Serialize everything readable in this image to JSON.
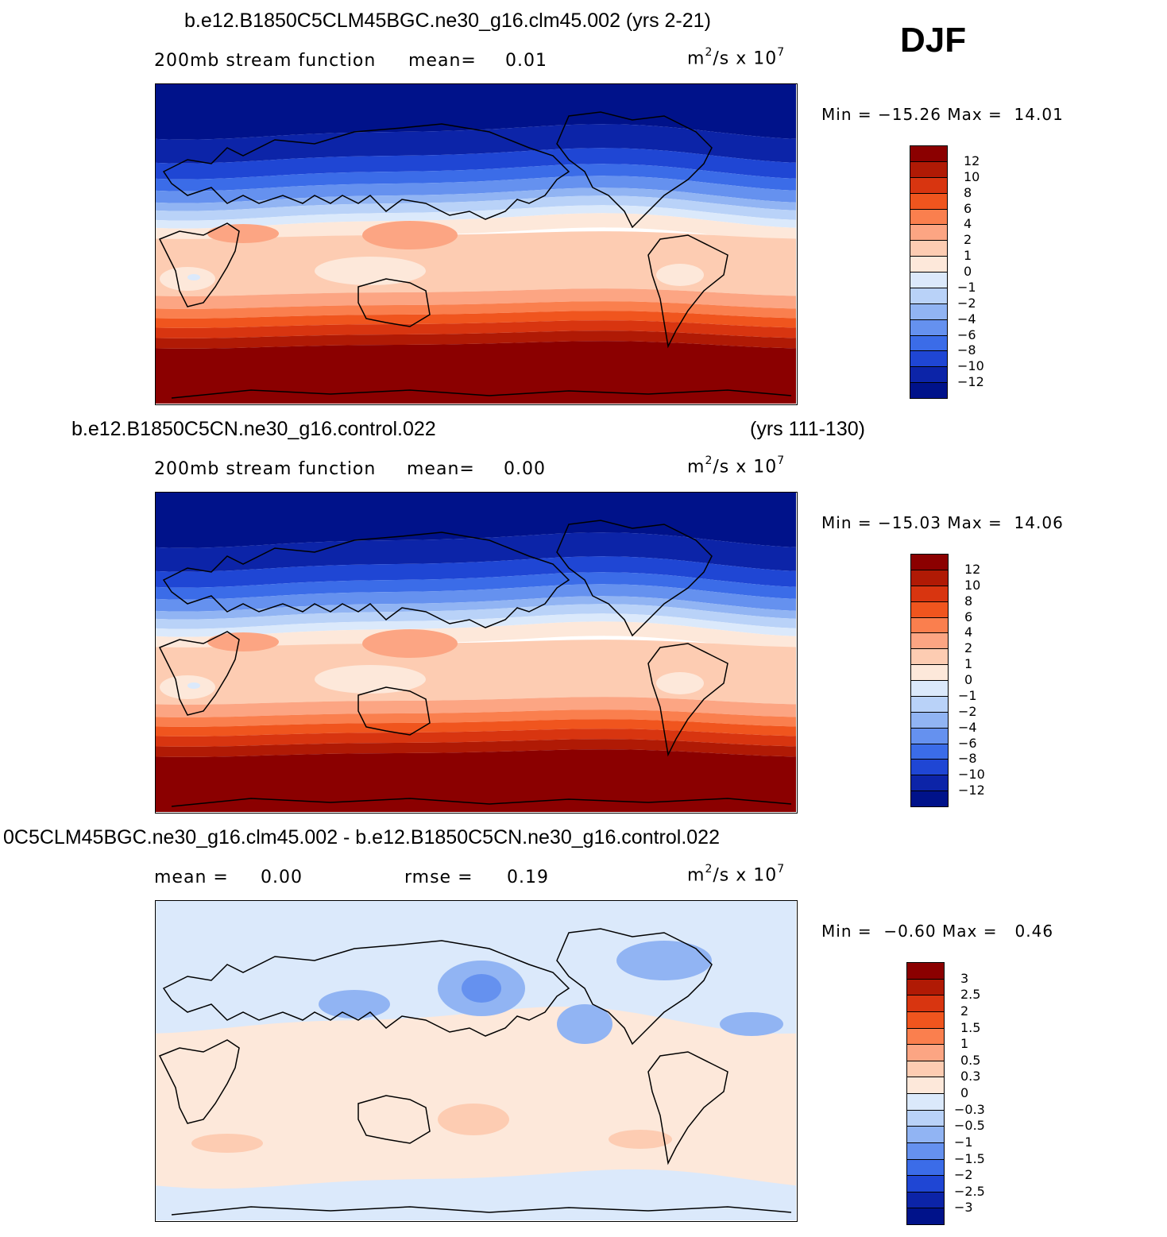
{
  "season": "DJF",
  "panels": [
    {
      "title": "b.e12.B1850C5CLM45BGC.ne30_g16.clm45.002 (yrs 2-21)",
      "title_right": "",
      "subtitle": "200mb stream function",
      "mean_label": "mean=",
      "mean_value": "0.01",
      "rmse_label": "",
      "rmse_value": "",
      "units": "m",
      "units_sup1": "2",
      "units_mid": "/s x 10",
      "units_sup2": "7",
      "min_label": "Min =",
      "min_value": "−15.26",
      "max_label": "Max =",
      "max_value": "14.01",
      "colorbar_labels": [
        "12",
        "10",
        "8",
        "6",
        "4",
        "2",
        "1",
        "0",
        "−1",
        "−2",
        "−4",
        "−6",
        "−8",
        "−10",
        "−12"
      ],
      "colorbar_colors": [
        "#8b0000",
        "#b01a05",
        "#d83510",
        "#f0551e",
        "#fa7f4e",
        "#fca583",
        "#fdccb2",
        "#fde8da",
        "#dbe9fb",
        "#b9d2f8",
        "#91b4f3",
        "#6591ef",
        "#3b6ce8",
        "#1f46d4",
        "#0c24a8",
        "#00128a"
      ],
      "field": "full"
    },
    {
      "title": "b.e12.B1850C5CN.ne30_g16.control.022",
      "title_right": "(yrs 111-130)",
      "subtitle": "200mb stream function",
      "mean_label": "mean=",
      "mean_value": "0.00",
      "rmse_label": "",
      "rmse_value": "",
      "units": "m",
      "units_sup1": "2",
      "units_mid": "/s x 10",
      "units_sup2": "7",
      "min_label": "Min =",
      "min_value": "−15.03",
      "max_label": "Max =",
      "max_value": "14.06",
      "colorbar_labels": [
        "12",
        "10",
        "8",
        "6",
        "4",
        "2",
        "1",
        "0",
        "−1",
        "−2",
        "−4",
        "−6",
        "−8",
        "−10",
        "−12"
      ],
      "colorbar_colors": [
        "#8b0000",
        "#b01a05",
        "#d83510",
        "#f0551e",
        "#fa7f4e",
        "#fca583",
        "#fdccb2",
        "#fde8da",
        "#dbe9fb",
        "#b9d2f8",
        "#91b4f3",
        "#6591ef",
        "#3b6ce8",
        "#1f46d4",
        "#0c24a8",
        "#00128a"
      ],
      "field": "full"
    },
    {
      "title": "0C5CLM45BGC.ne30_g16.clm45.002 - b.e12.B1850C5CN.ne30_g16.control.022",
      "title_right": "",
      "subtitle": "",
      "mean_label": "mean =",
      "mean_value": "0.00",
      "rmse_label": "rmse =",
      "rmse_value": "0.19",
      "units": "m",
      "units_sup1": "2",
      "units_mid": "/s x 10",
      "units_sup2": "7",
      "min_label": "Min =",
      "min_value": "−0.60",
      "max_label": "Max =",
      "max_value": "0.46",
      "colorbar_labels": [
        "3",
        "2.5",
        "2",
        "1.5",
        "1",
        "0.5",
        "0.3",
        "0",
        "−0.3",
        "−0.5",
        "−1",
        "−1.5",
        "−2",
        "−2.5",
        "−3"
      ],
      "colorbar_colors": [
        "#8b0000",
        "#b01a05",
        "#d83510",
        "#f0551e",
        "#fa7f4e",
        "#fca583",
        "#fdccb2",
        "#fde8da",
        "#dbe9fb",
        "#b9d2f8",
        "#91b4f3",
        "#6591ef",
        "#3b6ce8",
        "#1f46d4",
        "#0c24a8",
        "#00128a"
      ],
      "field": "diff"
    }
  ]
}
